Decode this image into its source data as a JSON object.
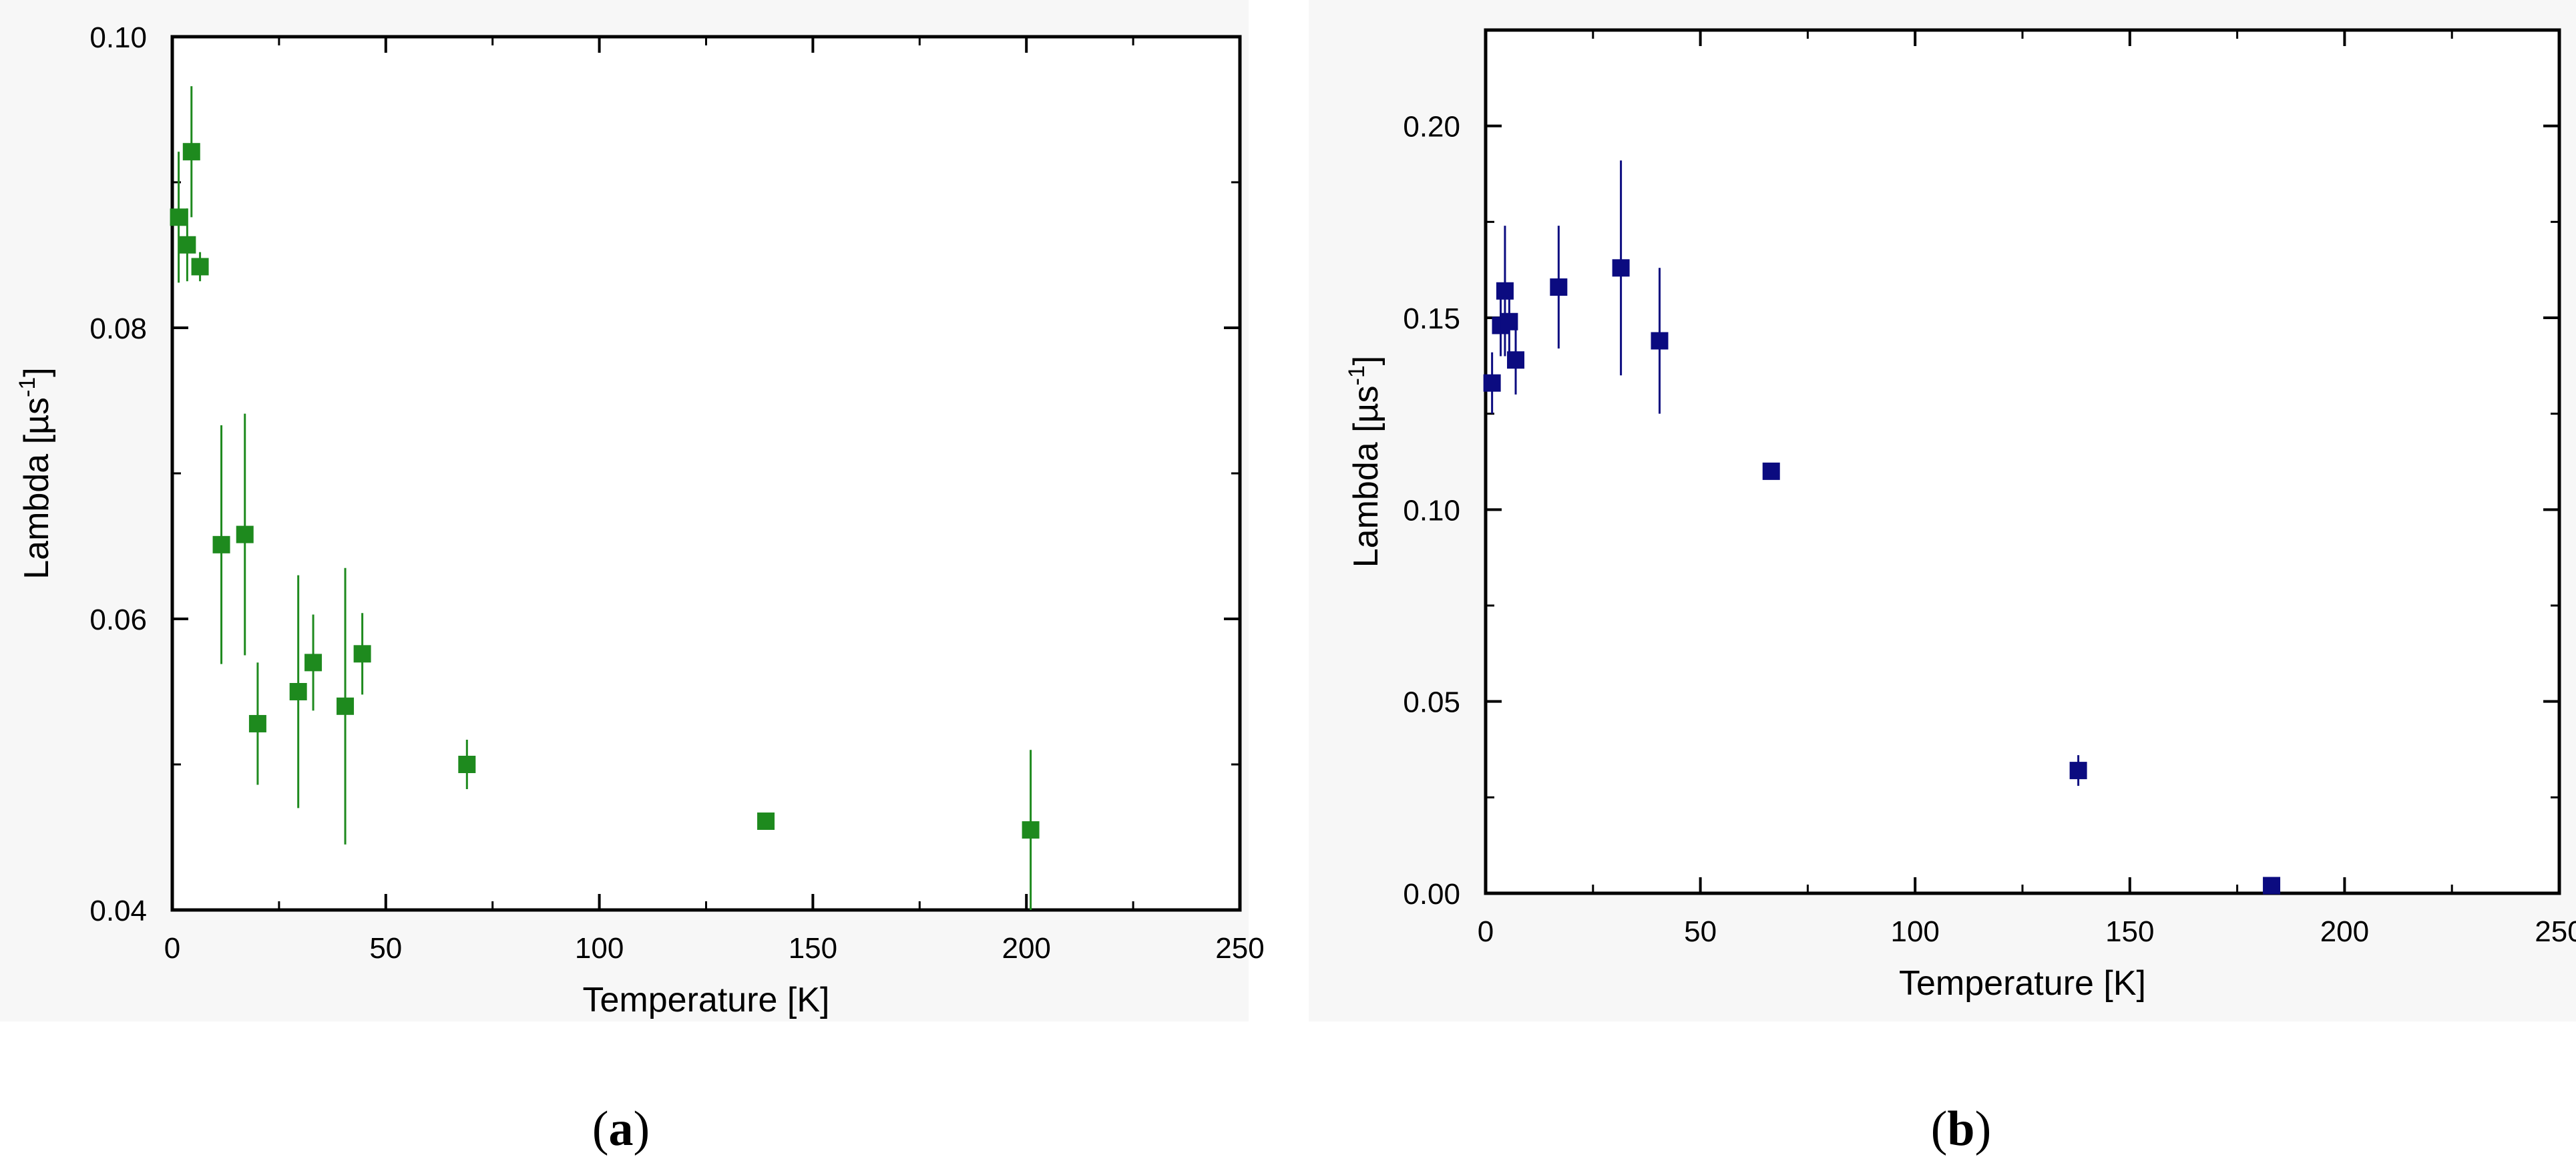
{
  "chart_data": [
    {
      "type": "scatter",
      "panel_label": "a",
      "xlabel": "Temperature [K]",
      "ylabel": "Lambda [µs",
      "ylabel_superscript": "-1",
      "ylabel_suffix": "]",
      "xlim": [
        0,
        250
      ],
      "ylim": [
        0.04,
        0.1
      ],
      "xticks": [
        0,
        50,
        100,
        150,
        200,
        250
      ],
      "yticks": [
        0.04,
        0.06,
        0.08,
        0.1
      ],
      "xtick_labels": [
        "0",
        "50",
        "100",
        "150",
        "200",
        "250"
      ],
      "ytick_labels": [
        "0.04",
        "0.06",
        "0.08",
        "0.10"
      ],
      "color": "#1e8a1e",
      "grid": false,
      "points": [
        {
          "x": 1.5,
          "y": 0.0876,
          "err": 0.0045
        },
        {
          "x": 3.5,
          "y": 0.0857,
          "err": 0.0025
        },
        {
          "x": 4.5,
          "y": 0.0921,
          "err": 0.0045
        },
        {
          "x": 6.5,
          "y": 0.0842,
          "err": 0.001
        },
        {
          "x": 11.5,
          "y": 0.0651,
          "err": 0.0082
        },
        {
          "x": 17,
          "y": 0.0658,
          "err": 0.0083
        },
        {
          "x": 20,
          "y": 0.0528,
          "err": 0.0042
        },
        {
          "x": 29.5,
          "y": 0.055,
          "err": 0.008
        },
        {
          "x": 33,
          "y": 0.057,
          "err": 0.0033
        },
        {
          "x": 40.5,
          "y": 0.054,
          "err": 0.0095
        },
        {
          "x": 44.5,
          "y": 0.0576,
          "err": 0.0028
        },
        {
          "x": 69,
          "y": 0.05,
          "err": 0.0017
        },
        {
          "x": 139,
          "y": 0.0461,
          "err": 0.0005
        },
        {
          "x": 201,
          "y": 0.0455,
          "err": 0.0055
        }
      ]
    },
    {
      "type": "scatter",
      "panel_label": "b",
      "xlabel": "Temperature [K]",
      "ylabel": "Lambda [µs",
      "ylabel_superscript": "-1",
      "ylabel_suffix": "]",
      "xlim": [
        0,
        250
      ],
      "ylim": [
        0.0,
        0.225
      ],
      "xticks": [
        0,
        50,
        100,
        150,
        200,
        250
      ],
      "yticks": [
        0.0,
        0.05,
        0.1,
        0.15,
        0.2
      ],
      "xtick_labels": [
        "0",
        "50",
        "100",
        "150",
        "200",
        "250"
      ],
      "ytick_labels": [
        "0.00",
        "0.05",
        "0.10",
        "0.15",
        "0.20"
      ],
      "color": "#0b0b80",
      "grid": false,
      "points": [
        {
          "x": 1.5,
          "y": 0.133,
          "err": 0.008
        },
        {
          "x": 3.5,
          "y": 0.148,
          "err": 0.008
        },
        {
          "x": 4.5,
          "y": 0.157,
          "err": 0.017
        },
        {
          "x": 5.5,
          "y": 0.149,
          "err": 0.01
        },
        {
          "x": 7,
          "y": 0.139,
          "err": 0.009
        },
        {
          "x": 17,
          "y": 0.158,
          "err": 0.016
        },
        {
          "x": 31.5,
          "y": 0.163,
          "err": 0.028
        },
        {
          "x": 40.5,
          "y": 0.144,
          "err": 0.019
        },
        {
          "x": 66.5,
          "y": 0.11,
          "err": 0.001
        },
        {
          "x": 138,
          "y": 0.032,
          "err": 0.004
        },
        {
          "x": 183,
          "y": 0.002,
          "err": 0.001
        }
      ]
    }
  ]
}
